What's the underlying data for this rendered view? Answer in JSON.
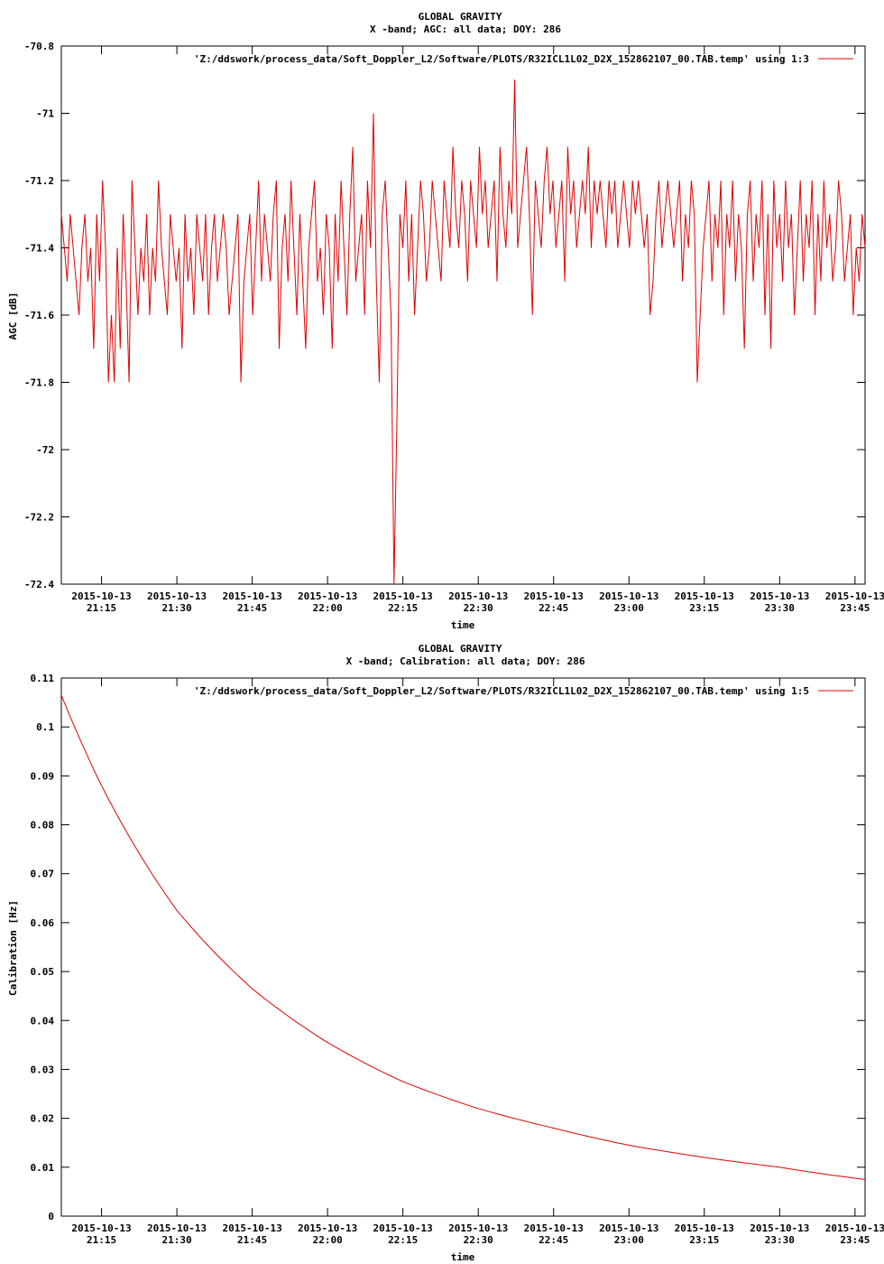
{
  "chart_data": [
    {
      "type": "line",
      "title": "GLOBAL GRAVITY",
      "subtitle": "X -band; AGC: all data; DOY: 286",
      "xlabel": "time",
      "ylabel": "AGC [dB]",
      "ylim": [
        -72.4,
        -70.8
      ],
      "xlim": [
        "2015-10-13 21:07",
        "2015-10-13 23:47"
      ],
      "grid": false,
      "legend_position": "top-right",
      "series_color": "#e00000",
      "series": [
        {
          "name": "'Z:/ddswork/process_data/Soft_Doppler_L2/Software/PLOTS/R32ICL1L02_D2X_152862107_00.TAB.temp' using 1:3",
          "x_start": "2015-10-13 21:07",
          "x_end": "2015-10-13 23:47",
          "values": [
            -71.3,
            -71.4,
            -71.5,
            -71.3,
            -71.4,
            -71.5,
            -71.6,
            -71.4,
            -71.3,
            -71.5,
            -71.4,
            -71.7,
            -71.3,
            -71.5,
            -71.2,
            -71.4,
            -71.8,
            -71.6,
            -71.8,
            -71.4,
            -71.7,
            -71.3,
            -71.5,
            -71.8,
            -71.2,
            -71.4,
            -71.6,
            -71.4,
            -71.5,
            -71.3,
            -71.6,
            -71.4,
            -71.5,
            -71.2,
            -71.4,
            -71.5,
            -71.6,
            -71.3,
            -71.4,
            -71.5,
            -71.4,
            -71.7,
            -71.3,
            -71.5,
            -71.4,
            -71.6,
            -71.3,
            -71.4,
            -71.5,
            -71.3,
            -71.6,
            -71.4,
            -71.3,
            -71.5,
            -71.4,
            -71.3,
            -71.4,
            -71.6,
            -71.5,
            -71.4,
            -71.3,
            -71.8,
            -71.5,
            -71.4,
            -71.3,
            -71.6,
            -71.4,
            -71.2,
            -71.5,
            -71.3,
            -71.4,
            -71.5,
            -71.3,
            -71.2,
            -71.7,
            -71.4,
            -71.3,
            -71.5,
            -71.2,
            -71.4,
            -71.6,
            -71.3,
            -71.5,
            -71.7,
            -71.4,
            -71.3,
            -71.2,
            -71.5,
            -71.4,
            -71.6,
            -71.3,
            -71.4,
            -71.7,
            -71.3,
            -71.5,
            -71.2,
            -71.4,
            -71.6,
            -71.3,
            -71.1,
            -71.5,
            -71.4,
            -71.3,
            -71.6,
            -71.2,
            -71.4,
            -71.0,
            -71.5,
            -71.8,
            -71.3,
            -71.2,
            -71.4,
            -71.6,
            -72.4,
            -71.9,
            -71.3,
            -71.4,
            -71.2,
            -71.5,
            -71.3,
            -71.6,
            -71.4,
            -71.2,
            -71.3,
            -71.5,
            -71.4,
            -71.2,
            -71.3,
            -71.4,
            -71.5,
            -71.2,
            -71.3,
            -71.4,
            -71.1,
            -71.3,
            -71.4,
            -71.2,
            -71.3,
            -71.5,
            -71.2,
            -71.3,
            -71.4,
            -71.1,
            -71.3,
            -71.2,
            -71.4,
            -71.3,
            -71.2,
            -71.5,
            -71.1,
            -71.3,
            -71.4,
            -71.2,
            -71.3,
            -70.9,
            -71.4,
            -71.3,
            -71.2,
            -71.1,
            -71.3,
            -71.6,
            -71.2,
            -71.3,
            -71.4,
            -71.2,
            -71.1,
            -71.3,
            -71.2,
            -71.4,
            -71.3,
            -71.2,
            -71.5,
            -71.1,
            -71.3,
            -71.2,
            -71.4,
            -71.3,
            -71.2,
            -71.3,
            -71.1,
            -71.4,
            -71.2,
            -71.3,
            -71.2,
            -71.3,
            -71.4,
            -71.2,
            -71.3,
            -71.2,
            -71.4,
            -71.3,
            -71.2,
            -71.3,
            -71.4,
            -71.2,
            -71.3,
            -71.2,
            -71.3,
            -71.4,
            -71.3,
            -71.6,
            -71.5,
            -71.3,
            -71.2,
            -71.4,
            -71.3,
            -71.2,
            -71.3,
            -71.4,
            -71.3,
            -71.2,
            -71.5,
            -71.3,
            -71.4,
            -71.2,
            -71.3,
            -71.8,
            -71.6,
            -71.4,
            -71.3,
            -71.2,
            -71.5,
            -71.3,
            -71.4,
            -71.2,
            -71.6,
            -71.3,
            -71.4,
            -71.2,
            -71.5,
            -71.3,
            -71.4,
            -71.7,
            -71.3,
            -71.2,
            -71.5,
            -71.3,
            -71.4,
            -71.2,
            -71.6,
            -71.3,
            -71.7,
            -71.2,
            -71.4,
            -71.3,
            -71.5,
            -71.2,
            -71.4,
            -71.3,
            -71.6,
            -71.4,
            -71.2,
            -71.5,
            -71.3,
            -71.4,
            -71.2,
            -71.6,
            -71.3,
            -71.5,
            -71.2,
            -71.4,
            -71.3,
            -71.5,
            -71.4,
            -71.2,
            -71.3,
            -71.5,
            -71.4,
            -71.3,
            -71.6,
            -71.4,
            -71.5,
            -71.3,
            -71.4
          ]
        }
      ]
    },
    {
      "type": "line",
      "title": "GLOBAL GRAVITY",
      "subtitle": "X -band; Calibration: all data; DOY: 286",
      "xlabel": "time",
      "ylabel": "Calibration [Hz]",
      "ylim": [
        0,
        0.11
      ],
      "xlim": [
        "2015-10-13 21:07",
        "2015-10-13 23:47"
      ],
      "grid": false,
      "legend_position": "top-right",
      "series_color": "#e00000",
      "series": [
        {
          "name": "'Z:/ddswork/process_data/Soft_Doppler_L2/Software/PLOTS/R32ICL1L02_D2X_152862107_00.TAB.temp' using 1:5",
          "x": [
            "2015-10-13 21:07",
            "2015-10-13 21:15",
            "2015-10-13 21:30",
            "2015-10-13 21:45",
            "2015-10-13 22:00",
            "2015-10-13 22:15",
            "2015-10-13 22:30",
            "2015-10-13 22:45",
            "2015-10-13 23:00",
            "2015-10-13 23:15",
            "2015-10-13 23:30",
            "2015-10-13 23:47"
          ],
          "values": [
            0.1065,
            0.088,
            0.0625,
            0.0465,
            0.0355,
            0.0275,
            0.022,
            0.018,
            0.0145,
            0.012,
            0.01,
            0.0075
          ]
        }
      ]
    }
  ],
  "plots": [
    {
      "title": "GLOBAL GRAVITY",
      "subtitle": "X -band; AGC: all data; DOY: 286",
      "ylabel": "AGC [dB]",
      "xlabel": "time",
      "legend": "'Z:/ddswork/process_data/Soft_Doppler_L2/Software/PLOTS/R32ICL1L02_D2X_152862107_00.TAB.temp' using 1:3",
      "yticks": [
        "-70.8",
        "-71",
        "-71.2",
        "-71.4",
        "-71.6",
        "-71.8",
        "-72",
        "-72.2",
        "-72.4"
      ],
      "xtick_dates": [
        "2015-10-13",
        "2015-10-13",
        "2015-10-13",
        "2015-10-13",
        "2015-10-13",
        "2015-10-13",
        "2015-10-13",
        "2015-10-13",
        "2015-10-13",
        "2015-10-13",
        "2015-10-13"
      ],
      "xtick_times": [
        "21:15",
        "21:30",
        "21:45",
        "22:00",
        "22:15",
        "22:30",
        "22:45",
        "23:00",
        "23:15",
        "23:30",
        "23:45"
      ]
    },
    {
      "title": "GLOBAL GRAVITY",
      "subtitle": "X -band; Calibration: all data; DOY: 286",
      "ylabel": "Calibration [Hz]",
      "xlabel": "time",
      "legend": "'Z:/ddswork/process_data/Soft_Doppler_L2/Software/PLOTS/R32ICL1L02_D2X_152862107_00.TAB.temp' using 1:5",
      "yticks": [
        "0.11",
        "0.1",
        "0.09",
        "0.08",
        "0.07",
        "0.06",
        "0.05",
        "0.04",
        "0.03",
        "0.02",
        "0.01",
        "0"
      ],
      "xtick_dates": [
        "2015-10-13",
        "2015-10-13",
        "2015-10-13",
        "2015-10-13",
        "2015-10-13",
        "2015-10-13",
        "2015-10-13",
        "2015-10-13",
        "2015-10-13",
        "2015-10-13",
        "2015-10-13"
      ],
      "xtick_times": [
        "21:15",
        "21:30",
        "21:45",
        "22:00",
        "22:15",
        "22:30",
        "22:45",
        "23:00",
        "23:15",
        "23:30",
        "23:45"
      ]
    }
  ]
}
